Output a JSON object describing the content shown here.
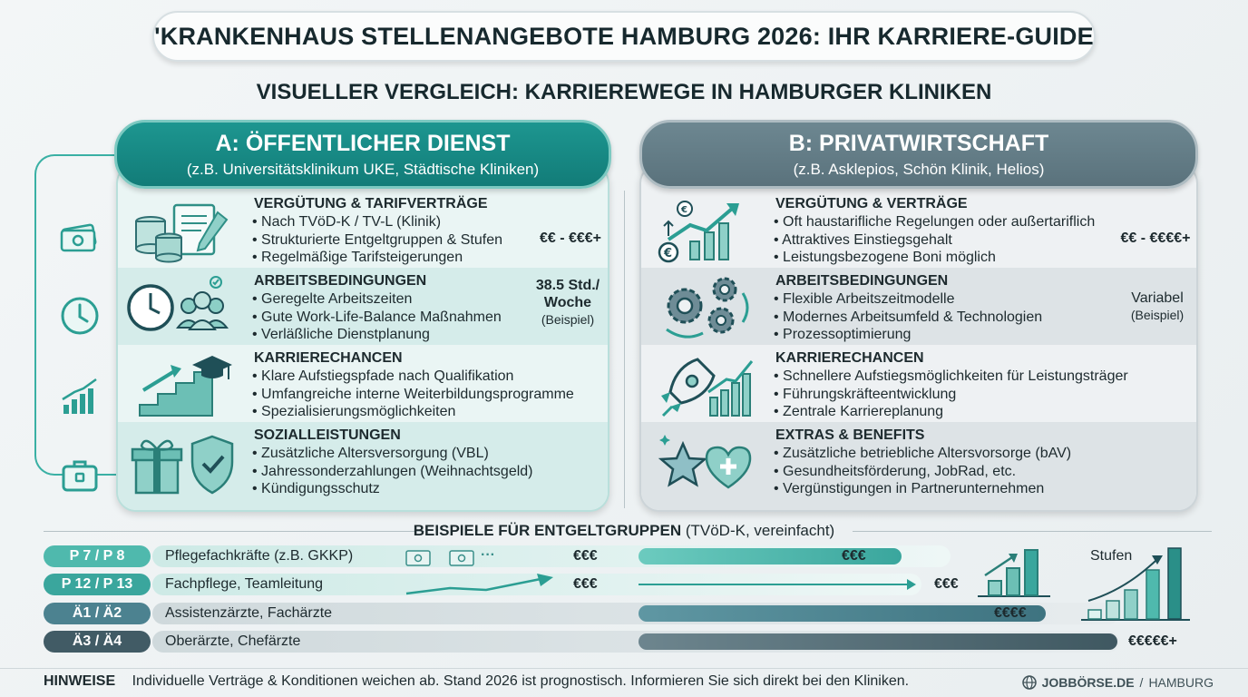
{
  "title": "'KRANKENHAUS STELLENANGEBOTE HAMBURG 2026: IHR KARRIERE-GUIDE",
  "subtitle": "VISUELLER VERGLEICH: KARRIEREWEGE IN HAMBURGER KLINIKEN",
  "panel_a": {
    "title": "A: ÖFFENTLICHER DIENST",
    "subtitle": "(z.B. Universitätsklinikum UKE, Städtische Kliniken)",
    "rows": [
      {
        "title": "VERGÜTUNG & TARIFVERTRÄGE",
        "items": [
          "Nach TVöD-K / TV-L (Klinik)",
          "Strukturierte Entgeltgruppen & Stufen",
          "Regelmäßige Tarifsteigerungen"
        ],
        "value": "€€ - €€€+",
        "value_sub": ""
      },
      {
        "title": "ARBEITSBEDINGUNGEN",
        "items": [
          "Geregelte Arbeitszeiten",
          "Gute Work-Life-Balance Maßnahmen",
          "Verläßliche Dienstplanung"
        ],
        "value": "38.5 Std./ Woche",
        "value_sub": "(Beispiel)"
      },
      {
        "title": "KARRIERECHANCEN",
        "items": [
          "Klare Aufstiegspfade nach Qualifikation",
          "Umfangreiche interne Weiterbildungsprogramme",
          "Spezialisierungsmöglichkeiten"
        ],
        "value": "",
        "value_sub": ""
      },
      {
        "title": "SOZIALLEISTUNGEN",
        "items": [
          "Zusätzliche Altersversorgung (VBL)",
          "Jahressonderzahlungen (Weihnachtsgeld)",
          "Kündigungsschutz"
        ],
        "value": "",
        "value_sub": ""
      }
    ]
  },
  "panel_b": {
    "title": "B: PRIVATWIRTSCHAFT",
    "subtitle": "(z.B. Asklepios, Schön Klinik, Helios)",
    "rows": [
      {
        "title": "VERGÜTUNG & VERTRÄGE",
        "items": [
          "Oft haustarifliche Regelungen oder außertariflich",
          "Attraktives Einstiegsgehalt",
          "Leistungsbezogene Boni möglich"
        ],
        "value": "€€ - €€€€+",
        "value_sub": ""
      },
      {
        "title": "ARBEITSBEDINGUNGEN",
        "items": [
          "Flexible Arbeitszeitmodelle",
          "Modernes Arbeitsumfeld & Technologien",
          "Prozessoptimierung"
        ],
        "value": "Variabel",
        "value_sub": "(Beispiel)"
      },
      {
        "title": "KARRIERECHANCEN",
        "items": [
          "Schnellere Aufstiegsmöglichkeiten für Leistungsträger",
          "Führungskräfteentwicklung",
          "Zentrale Karriereplanung"
        ],
        "value": "",
        "value_sub": ""
      },
      {
        "title": "EXTRAS & BENEFITS",
        "items": [
          "Zusätzliche betriebliche Altersvorsorge (bAV)",
          "Gesundheitsförderung, JobRad, etc.",
          "Vergünstigungen in Partnerunternehmen"
        ],
        "value": "",
        "value_sub": ""
      }
    ]
  },
  "pay_section": {
    "title": "BEISPIELE FÜR ENTGELTGRUPPEN",
    "title_suffix": "(TVöD-K, vereinfacht)",
    "stufen_label": "Stufen",
    "ellipsis": "···",
    "rows": [
      {
        "badge": "P 7 / P 8",
        "label": "Pflegefachkräfte (z.B. GKKP)",
        "mid_value": "€€€",
        "end_value": "€€€",
        "level": 0.55
      },
      {
        "badge": "P 12 / P 13",
        "label": "Fachpflege, Teamleitung",
        "mid_value": "€€€",
        "end_value": "€€€",
        "level": 0.7
      },
      {
        "badge": "Ä1 / Ä2",
        "label": "Assistenzärzte, Fachärzte",
        "mid_value": "",
        "end_value": "€€€€",
        "level": 0.85
      },
      {
        "badge": "Ä3 / Ä4",
        "label": "Oberärzte, Chefärzte",
        "mid_value": "",
        "end_value": "€€€€€+",
        "level": 1.0
      }
    ],
    "colors": [
      "#4fb9ad",
      "#3aa69d",
      "#4c8290",
      "#415b65"
    ]
  },
  "notes_label": "HINWEISE",
  "notes_text": "Individuelle Verträge & Konditionen weichen ab. Stand 2026 ist prognostisch. Informieren Sie sich direkt bei den Kliniken.",
  "brand_main": "JOBBÖRSE.DE",
  "brand_sep": "/",
  "brand_city": "HAMBURG",
  "icons": [
    "money-icon",
    "clock-icon",
    "growth-chart-icon",
    "briefcase-icon",
    "globe-icon"
  ]
}
